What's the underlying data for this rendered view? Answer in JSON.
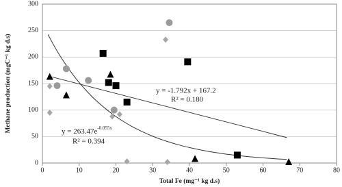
{
  "chart_data": {
    "type": "scatter",
    "x_label": "Total Fe (mg⁻¹ kg d.s)",
    "y_label": "Methane production (mgC⁻¹ kg d.s)",
    "xlim": [
      0,
      80
    ],
    "xticks": [
      0,
      10,
      20,
      30,
      40,
      50,
      60,
      70,
      80
    ],
    "ylim": [
      0,
      300
    ],
    "yticks": [
      0,
      50,
      100,
      150,
      200,
      250,
      300
    ],
    "grid": true,
    "series": [
      {
        "marker": "square",
        "color": "#000000",
        "x": [
          16.5,
          18,
          20,
          23,
          39.5,
          53
        ],
        "values": [
          207,
          152,
          146,
          115,
          191,
          15
        ]
      },
      {
        "marker": "triangle",
        "color": "#000000",
        "x": [
          2,
          6.5,
          18.5,
          41.5,
          67
        ],
        "values": [
          163,
          128,
          167,
          8,
          2
        ]
      },
      {
        "marker": "circle",
        "color": "#9a9a9a",
        "x": [
          6.5,
          4,
          12.5,
          19.5,
          34.5
        ],
        "values": [
          178,
          146,
          156,
          100,
          265
        ]
      },
      {
        "marker": "diamond",
        "color": "#a6a6a6",
        "x": [
          2,
          2,
          19,
          21,
          23,
          33.5,
          34
        ],
        "values": [
          145,
          95,
          88,
          92,
          3,
          233,
          2
        ]
      }
    ],
    "trendlines": [
      {
        "kind": "linear",
        "slope": -1.792,
        "intercept": 167.2,
        "x_range": [
          1.5,
          66.5
        ],
        "equation": "y = -1.792x + 167.2",
        "r2": "R² = 0.180"
      },
      {
        "kind": "exponential",
        "a": 263.47,
        "b": -0.055,
        "x_range": [
          1.5,
          66.5
        ],
        "equation": "y = 263.47e",
        "exponent": "-0.055x",
        "r2": "R² = 0.394"
      }
    ]
  }
}
